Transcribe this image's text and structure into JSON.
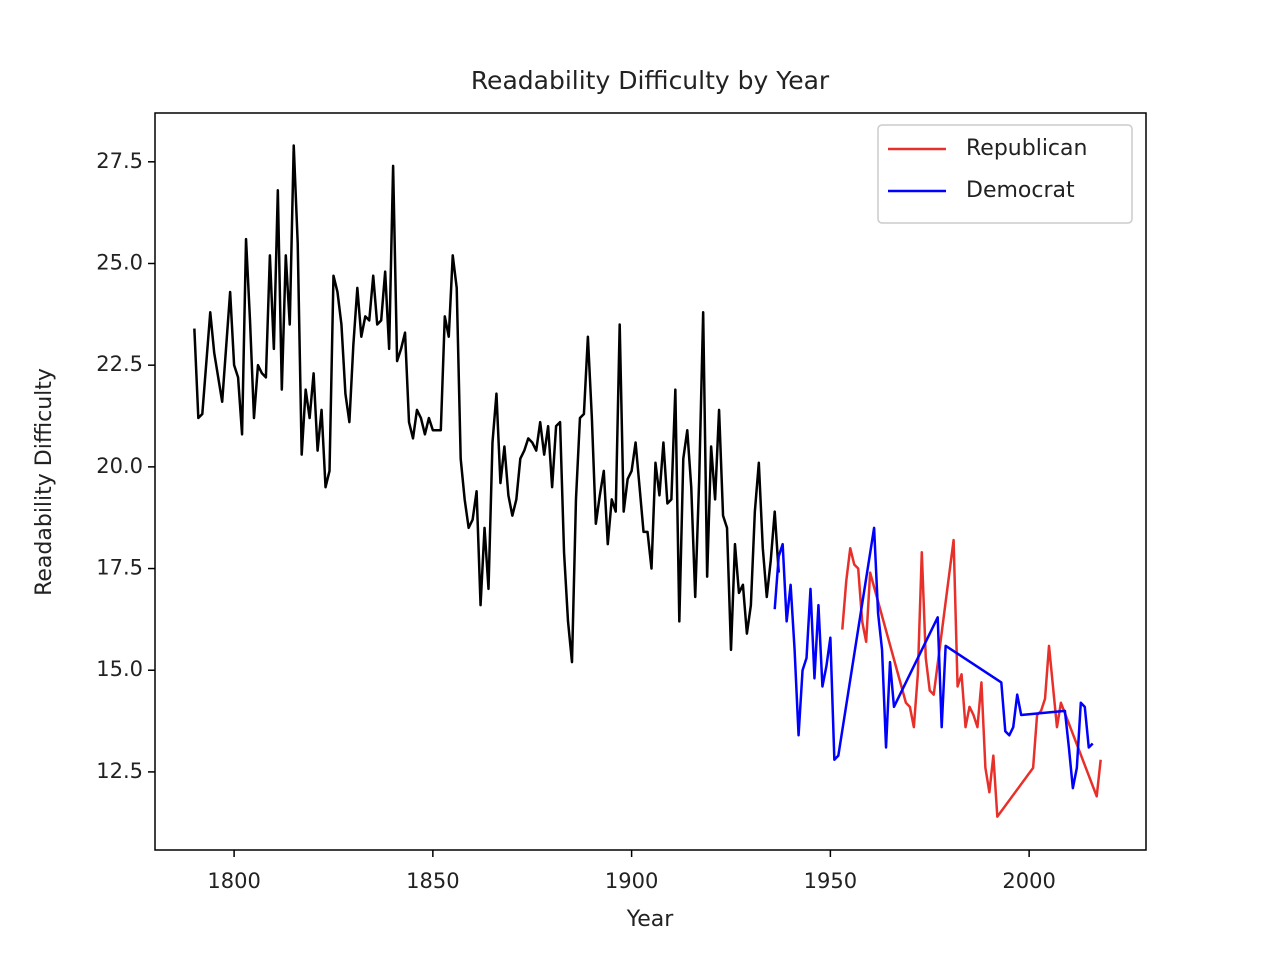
{
  "chart_data": {
    "type": "line",
    "title": "Readability Difficulty by Year",
    "xlabel": "Year",
    "ylabel": "Readability Difficulty",
    "xlim": [
      1780.1,
      2029.4
    ],
    "ylim": [
      10.58,
      28.7
    ],
    "xticks": [
      1800,
      1850,
      1900,
      1950,
      2000
    ],
    "yticks": [
      12.5,
      {
        "value": 15,
        "label": "15.0"
      },
      17.5,
      {
        "value": 20,
        "label": "20.0"
      },
      22.5,
      {
        "value": 25,
        "label": "25.0"
      },
      27.5
    ],
    "legend": "upper right",
    "series": [
      {
        "color": "#000000",
        "x": [
          1790,
          1791,
          1792,
          1794,
          1795,
          1797,
          1799,
          1800,
          1801,
          1802,
          1803,
          1804,
          1805,
          1806,
          1807,
          1808,
          1809,
          1810,
          1811,
          1812,
          1813,
          1814,
          1815,
          1816,
          1817,
          1818,
          1819,
          1820,
          1821,
          1822,
          1823,
          1824,
          1825,
          1826,
          1827,
          1828,
          1829,
          1830,
          1831,
          1832,
          1833,
          1834,
          1835,
          1836,
          1837,
          1838,
          1839,
          1840,
          1841,
          1842,
          1843,
          1844,
          1845,
          1846,
          1847,
          1848,
          1849,
          1850,
          1852,
          1853,
          1854,
          1855,
          1856,
          1857,
          1858,
          1859,
          1860,
          1861,
          1862,
          1863,
          1864,
          1865,
          1866,
          1867,
          1868,
          1869,
          1870,
          1871,
          1872,
          1873,
          1874,
          1875,
          1876,
          1877,
          1878,
          1879,
          1880,
          1881,
          1882,
          1883,
          1884,
          1885,
          1886,
          1887,
          1888,
          1889,
          1890,
          1891,
          1892,
          1893,
          1894,
          1895,
          1896,
          1897,
          1898,
          1899,
          1900,
          1901,
          1902,
          1903,
          1904,
          1905,
          1906,
          1907,
          1908,
          1909,
          1910,
          1911,
          1912,
          1913,
          1914,
          1915,
          1916,
          1917,
          1918,
          1919,
          1920,
          1921,
          1922,
          1923,
          1924,
          1925,
          1926,
          1927,
          1928,
          1929,
          1930,
          1931,
          1932,
          1933,
          1934,
          1935,
          1936,
          1937
        ],
        "values": [
          23.4,
          21.2,
          21.3,
          23.8,
          22.8,
          21.6,
          24.3,
          22.5,
          22.2,
          20.8,
          25.6,
          23.6,
          21.2,
          22.5,
          22.3,
          22.2,
          25.2,
          22.9,
          26.8,
          21.9,
          25.2,
          23.5,
          27.9,
          25.5,
          20.3,
          21.9,
          21.2,
          22.3,
          20.4,
          21.4,
          19.5,
          19.9,
          24.7,
          24.3,
          23.5,
          21.8,
          21.1,
          23.0,
          24.4,
          23.2,
          23.7,
          23.6,
          24.7,
          23.5,
          23.6,
          24.8,
          22.9,
          27.4,
          22.6,
          22.9,
          23.3,
          21.1,
          20.7,
          21.4,
          21.2,
          20.8,
          21.2,
          20.9,
          20.9,
          23.7,
          23.2,
          25.2,
          24.4,
          20.2,
          19.2,
          18.5,
          18.7,
          19.4,
          16.6,
          18.5,
          17.0,
          20.6,
          21.8,
          19.6,
          20.5,
          19.3,
          18.8,
          19.2,
          20.2,
          20.4,
          20.7,
          20.6,
          20.4,
          21.1,
          20.3,
          21.0,
          19.5,
          21.0,
          21.1,
          17.9,
          16.2,
          15.2,
          19.2,
          21.2,
          21.3,
          23.2,
          21.2,
          18.6,
          19.3,
          19.9,
          18.1,
          19.2,
          18.9,
          23.5,
          18.9,
          19.7,
          19.9,
          20.6,
          19.5,
          18.4,
          18.4,
          17.5,
          20.1,
          19.3,
          20.6,
          19.1,
          19.2,
          21.9,
          16.2,
          20.2,
          20.9,
          19.5,
          16.8,
          19.7,
          23.8,
          17.3,
          20.5,
          19.2,
          21.4,
          18.8,
          18.5,
          15.5,
          18.1,
          16.9,
          17.1,
          15.9,
          16.6,
          18.9,
          20.1,
          18.0,
          16.8,
          17.7,
          18.9,
          17.4
        ]
      },
      {
        "name": "Republican",
        "color": "#e8302a",
        "x": [
          1953,
          1954,
          1955,
          1956,
          1957,
          1958,
          1959,
          1960,
          1969,
          1970,
          1971,
          1972,
          1973,
          1974,
          1975,
          1976,
          1981,
          1982,
          1983,
          1984,
          1985,
          1986,
          1987,
          1988,
          1989,
          1990,
          1991,
          1992,
          2001,
          2002,
          2003,
          2004,
          2005,
          2006,
          2007,
          2008,
          2017,
          2018
        ],
        "values": [
          16.0,
          17.2,
          18.0,
          17.6,
          17.5,
          16.2,
          15.7,
          17.4,
          14.2,
          14.1,
          13.6,
          14.9,
          17.9,
          15.3,
          14.5,
          14.4,
          18.2,
          14.6,
          14.9,
          13.6,
          14.1,
          13.9,
          13.6,
          14.7,
          12.6,
          12.0,
          12.9,
          11.4,
          12.6,
          13.9,
          14.0,
          14.3,
          15.6,
          14.6,
          13.6,
          14.2,
          11.9,
          12.8
        ]
      },
      {
        "name": "Democrat",
        "color": "#0000ff",
        "x": [
          1936,
          1937,
          1938,
          1939,
          1940,
          1941,
          1942,
          1943,
          1944,
          1945,
          1946,
          1947,
          1948,
          1949,
          1950,
          1951,
          1952,
          1961,
          1962,
          1963,
          1964,
          1965,
          1966,
          1977,
          1978,
          1979,
          1993,
          1994,
          1995,
          1996,
          1997,
          1998,
          2009,
          2010,
          2011,
          2012,
          2013,
          2014,
          2015,
          2016
        ],
        "values": [
          16.5,
          17.8,
          18.1,
          16.2,
          17.1,
          15.5,
          13.4,
          15.0,
          15.3,
          17.0,
          14.8,
          16.6,
          14.6,
          15.1,
          15.8,
          12.8,
          12.9,
          18.5,
          16.4,
          15.5,
          13.1,
          15.2,
          14.1,
          16.3,
          13.6,
          15.6,
          14.7,
          13.5,
          13.4,
          13.6,
          14.4,
          13.9,
          14.0,
          13.1,
          12.1,
          12.6,
          14.2,
          14.1,
          13.1,
          13.2
        ]
      }
    ]
  }
}
